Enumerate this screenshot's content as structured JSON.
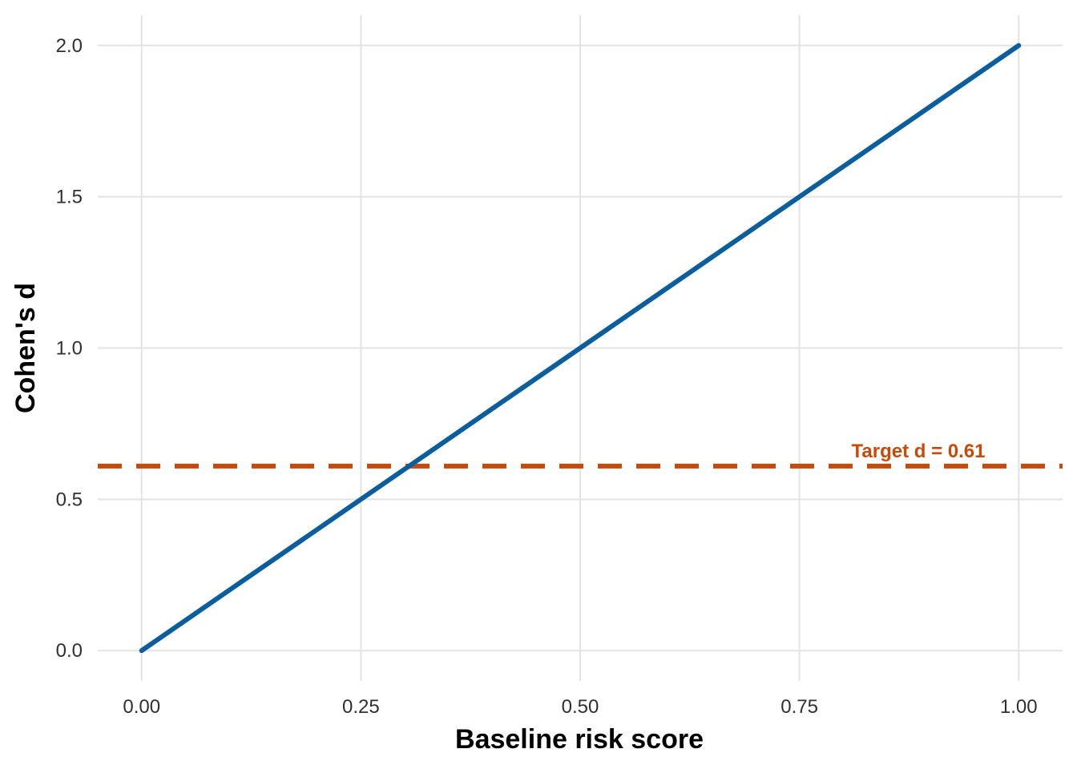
{
  "chart_data": {
    "type": "line",
    "title": "",
    "xlabel": "Baseline risk score",
    "ylabel": "Cohen's d",
    "xlim": [
      -0.05,
      1.05
    ],
    "ylim": [
      -0.1,
      2.1
    ],
    "grid": true,
    "x_ticks": [
      0,
      0.25,
      0.5,
      0.75,
      1.0
    ],
    "x_tick_labels": [
      "0.00",
      "0.25",
      "0.50",
      "0.75",
      "1.00"
    ],
    "y_ticks": [
      0,
      0.5,
      1.0,
      1.5,
      2.0
    ],
    "y_tick_labels": [
      "0.0",
      "0.5",
      "1.0",
      "1.5",
      "2.0"
    ],
    "series": [
      {
        "color": "#0a5e9e",
        "x": [
          0,
          1.0
        ],
        "y": [
          0,
          2.0
        ]
      }
    ],
    "reference_lines": [
      {
        "orientation": "horizontal",
        "y": 0.61,
        "style": "dashed",
        "color": "#c94a08",
        "label": "Target d = 0.61"
      }
    ]
  }
}
